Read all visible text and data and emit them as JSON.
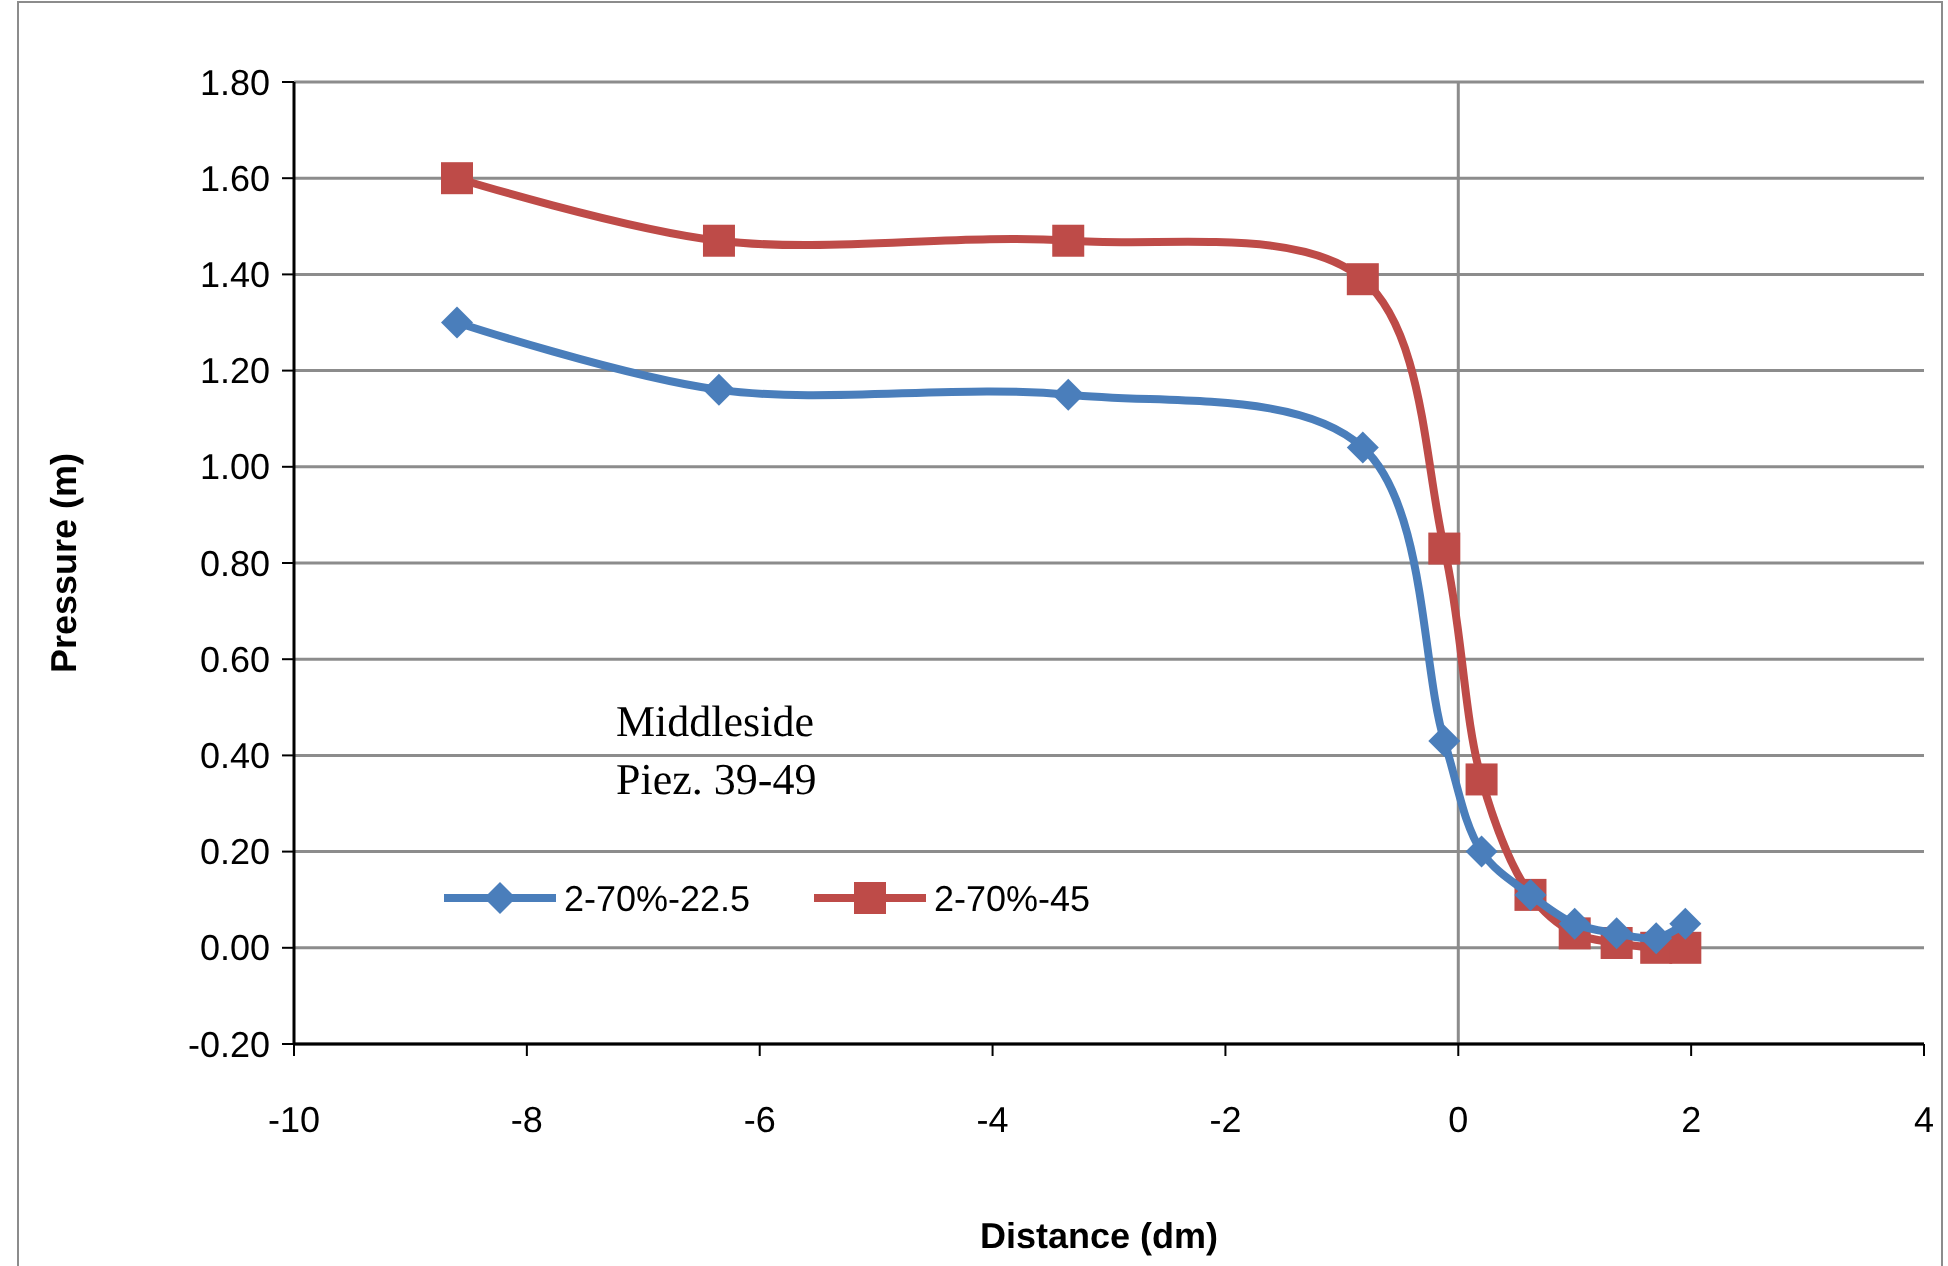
{
  "chart_data": {
    "type": "line",
    "xlabel": "Distance (dm)",
    "ylabel": "Pressure (m)",
    "xlim": [
      -10,
      4
    ],
    "xticks": [
      -10,
      -8,
      -6,
      -4,
      -2,
      0,
      2,
      4
    ],
    "ylim": [
      -0.2,
      1.8
    ],
    "yticks": [
      {
        "value": -0.2,
        "label": "-0.20"
      },
      {
        "value": 0,
        "label": "0.00"
      },
      {
        "value": 0.2,
        "label": "0.20"
      },
      {
        "value": 0.4,
        "label": "0.40"
      },
      {
        "value": 0.6,
        "label": "0.60"
      },
      {
        "value": 0.8,
        "label": "0.80"
      },
      {
        "value": 1.0,
        "label": "1.00"
      },
      {
        "value": 1.2,
        "label": "1.20"
      },
      {
        "value": 1.4,
        "label": "1.40"
      },
      {
        "value": 1.6,
        "label": "1.60"
      },
      {
        "value": 1.8,
        "label": "1.80"
      }
    ],
    "grid": "y",
    "legend": "bottom left",
    "ref_lines": [
      {
        "axis": "x",
        "value": 0,
        "color": "#8c8c8c"
      }
    ],
    "annotations": [
      "Middleside",
      "Piez. 39-49"
    ],
    "x": [
      -8.6,
      -6.35,
      -3.35,
      -0.82,
      -0.12,
      0.2,
      0.62,
      1.0,
      1.36,
      1.7,
      1.95
    ],
    "series": [
      {
        "name": "2-70%-22.5",
        "color": "#4a7ebb",
        "marker": "diamond",
        "values": [
          1.3,
          1.16,
          1.15,
          1.04,
          0.43,
          0.2,
          0.11,
          0.05,
          0.03,
          0.02,
          0.05
        ]
      },
      {
        "name": "2-70%-45",
        "color": "#be4b48",
        "marker": "square",
        "values": [
          1.6,
          1.47,
          1.47,
          1.39,
          0.83,
          0.35,
          0.11,
          0.03,
          0.01,
          0.0,
          0.0
        ]
      }
    ]
  }
}
